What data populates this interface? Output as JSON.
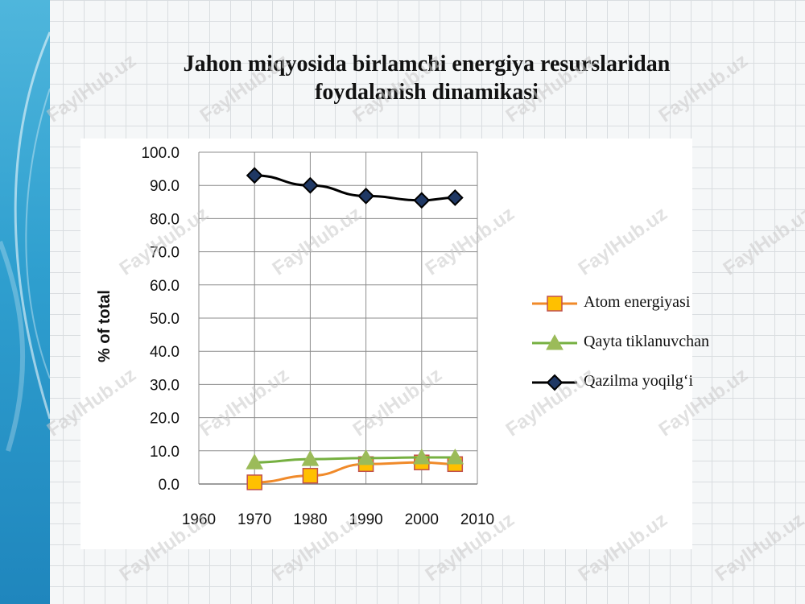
{
  "slide": {
    "title_line1": "Jahon miqyosida birlamchi energiya resurslaridan",
    "title_line2": "foydalanish dinamikasi",
    "watermark": "FaylHub.uz"
  },
  "chart_data": {
    "type": "line",
    "ylabel": "% of total",
    "xlabel": "",
    "xlim": [
      1960,
      2010
    ],
    "ylim": [
      0,
      100
    ],
    "x_ticks": [
      "1960",
      "1970",
      "1980",
      "1990",
      "2000",
      "2010"
    ],
    "y_ticks": [
      "0.0",
      "10.0",
      "20.0",
      "30.0",
      "40.0",
      "50.0",
      "60.0",
      "70.0",
      "80.0",
      "90.0",
      "100.0"
    ],
    "grid": true,
    "legend_position": "right",
    "series": [
      {
        "name": "Atom energiyasi",
        "x": [
          1970,
          1980,
          1990,
          2000,
          2006
        ],
        "values": [
          0.5,
          2.5,
          6.0,
          6.5,
          6.0
        ],
        "color": "#f08a2a",
        "marker": "square",
        "marker_fill": "#ffc000",
        "marker_stroke": "#c0504d"
      },
      {
        "name": "Qayta tiklanuvchan",
        "x": [
          1970,
          1980,
          1990,
          2000,
          2006
        ],
        "values": [
          6.5,
          7.5,
          7.8,
          8.0,
          8.0
        ],
        "color": "#76b041",
        "marker": "triangle",
        "marker_fill": "#9bbb59",
        "marker_stroke": "#9bbb59"
      },
      {
        "name": "Qazilma yoqilg‘i",
        "x": [
          1970,
          1980,
          1990,
          2000,
          2006
        ],
        "values": [
          93.0,
          90.0,
          86.8,
          85.5,
          86.3
        ],
        "color": "#000000",
        "marker": "diamond",
        "marker_fill": "#1f3864",
        "marker_stroke": "#000000"
      }
    ]
  }
}
